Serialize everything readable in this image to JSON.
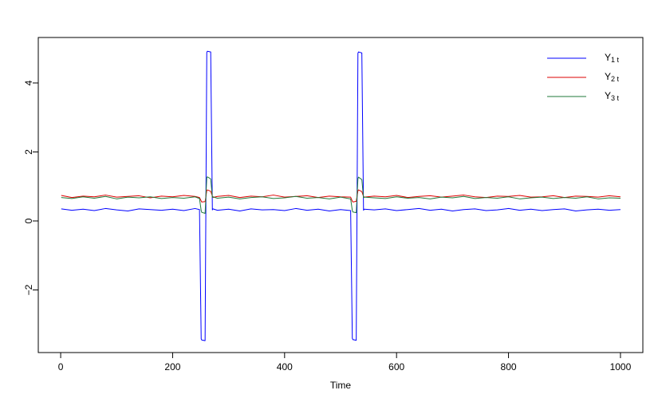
{
  "chart_data": {
    "type": "line",
    "xlabel": "Time",
    "x": [
      1,
      20,
      40,
      60,
      80,
      100,
      120,
      140,
      160,
      180,
      200,
      220,
      240,
      248,
      251,
      252,
      258,
      261,
      262,
      268,
      271,
      272,
      280,
      300,
      320,
      340,
      360,
      380,
      400,
      420,
      440,
      460,
      480,
      500,
      518,
      521,
      522,
      528,
      531,
      532,
      538,
      541,
      542,
      560,
      580,
      600,
      620,
      640,
      660,
      680,
      700,
      720,
      740,
      760,
      780,
      800,
      820,
      840,
      860,
      880,
      900,
      920,
      940,
      960,
      980,
      1000
    ],
    "series": [
      {
        "name": "Y",
        "subscript": "1 t",
        "color": "#0000ff",
        "values": [
          0.35,
          0.31,
          0.34,
          0.3,
          0.36,
          0.32,
          0.29,
          0.35,
          0.33,
          0.31,
          0.34,
          0.3,
          0.36,
          0.33,
          -3.42,
          -3.45,
          -3.47,
          4.88,
          4.92,
          4.9,
          0.32,
          0.35,
          0.31,
          0.34,
          0.29,
          0.35,
          0.32,
          0.33,
          0.3,
          0.36,
          0.31,
          0.34,
          0.29,
          0.33,
          0.3,
          -3.4,
          -3.44,
          -3.46,
          4.86,
          4.9,
          4.87,
          0.31,
          0.34,
          0.32,
          0.35,
          0.3,
          0.33,
          0.36,
          0.31,
          0.34,
          0.29,
          0.33,
          0.35,
          0.3,
          0.32,
          0.36,
          0.31,
          0.34,
          0.3,
          0.33,
          0.35,
          0.29,
          0.32,
          0.34,
          0.31,
          0.33
        ]
      },
      {
        "name": "Y",
        "subscript": "2 t",
        "color": "#dd0000",
        "values": [
          0.74,
          0.68,
          0.72,
          0.7,
          0.75,
          0.69,
          0.71,
          0.73,
          0.67,
          0.72,
          0.7,
          0.74,
          0.71,
          0.68,
          0.58,
          0.55,
          0.56,
          0.88,
          0.9,
          0.86,
          0.72,
          0.68,
          0.71,
          0.74,
          0.68,
          0.72,
          0.7,
          0.75,
          0.69,
          0.71,
          0.73,
          0.68,
          0.72,
          0.7,
          0.69,
          0.57,
          0.55,
          0.57,
          0.87,
          0.9,
          0.85,
          0.71,
          0.69,
          0.72,
          0.7,
          0.74,
          0.68,
          0.71,
          0.73,
          0.69,
          0.72,
          0.75,
          0.7,
          0.68,
          0.72,
          0.71,
          0.74,
          0.69,
          0.7,
          0.73,
          0.68,
          0.72,
          0.71,
          0.69,
          0.73,
          0.7
        ]
      },
      {
        "name": "Y",
        "subscript": "3 t",
        "color": "#1f7a3a",
        "values": [
          0.68,
          0.65,
          0.7,
          0.66,
          0.71,
          0.64,
          0.69,
          0.67,
          0.7,
          0.65,
          0.68,
          0.66,
          0.7,
          0.65,
          0.3,
          0.25,
          0.22,
          1.25,
          1.28,
          1.22,
          0.68,
          0.7,
          0.66,
          0.69,
          0.64,
          0.68,
          0.7,
          0.65,
          0.67,
          0.71,
          0.66,
          0.68,
          0.64,
          0.69,
          0.64,
          0.3,
          0.26,
          0.24,
          1.22,
          1.27,
          1.2,
          0.67,
          0.69,
          0.67,
          0.65,
          0.7,
          0.66,
          0.68,
          0.64,
          0.69,
          0.67,
          0.71,
          0.65,
          0.68,
          0.66,
          0.7,
          0.64,
          0.67,
          0.69,
          0.65,
          0.68,
          0.66,
          0.7,
          0.64,
          0.67,
          0.66
        ]
      }
    ],
    "xlim": [
      -40,
      1040
    ],
    "ylim": [
      -3.815,
      5.318
    ],
    "xticks": [
      0,
      200,
      400,
      600,
      800,
      1000
    ],
    "yticks": [
      {
        "value": -2,
        "label": "−2"
      },
      0,
      2,
      4
    ],
    "legend": "top-right"
  }
}
